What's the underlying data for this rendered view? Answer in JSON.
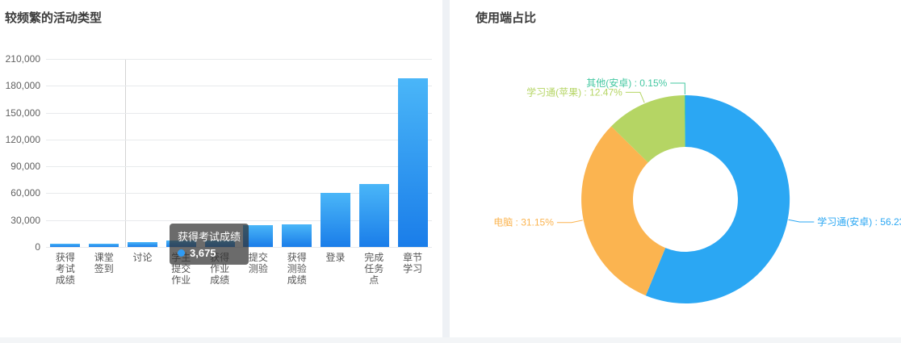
{
  "page": {
    "divider_color": "#eef1f5",
    "bottom_strip_color": "#f3f5f7"
  },
  "tooltip": {
    "title": "获得考试成绩",
    "value": "3,675",
    "marker_color": "#2f9bf4"
  },
  "chart_data": [
    {
      "type": "bar",
      "title": "较频繁的活动类型",
      "categories": [
        "获得考试成绩",
        "课堂签到",
        "讨论",
        "学生提交作业",
        "获得作业成绩",
        "提交测验",
        "获得测验成绩",
        "登录",
        "完成任务点",
        "章节学习"
      ],
      "category_lines": [
        [
          "获得",
          "考试",
          "成绩"
        ],
        [
          "课堂",
          "签到"
        ],
        [
          "讨论"
        ],
        [
          "学生",
          "提交",
          "作业"
        ],
        [
          "获得",
          "作业",
          "成绩"
        ],
        [
          "提交",
          "测验"
        ],
        [
          "获得",
          "测验",
          "成绩"
        ],
        [
          "登录"
        ],
        [
          "完成",
          "任务",
          "点"
        ],
        [
          "章节",
          "学习"
        ]
      ],
      "values": [
        3675,
        3900,
        5200,
        6900,
        7500,
        24500,
        25500,
        60500,
        70500,
        188000
      ],
      "y_ticks": [
        "210,000",
        "180,000",
        "150,000",
        "120,000",
        "90,000",
        "60,000",
        "30,000",
        "0"
      ],
      "ylim": [
        0,
        210000
      ],
      "grid": true,
      "bar_gradient_top": "#4ab6f8",
      "bar_gradient_bottom": "#1a7de9",
      "xlabel": "",
      "ylabel": ""
    },
    {
      "type": "pie",
      "title": "使用端占比",
      "donut": true,
      "legend_position": "none",
      "series": [
        {
          "name": "学习通(安卓)",
          "value": 56.23,
          "color": "#2ba7f3"
        },
        {
          "name": "电脑",
          "value": 31.15,
          "color": "#fbb450"
        },
        {
          "name": "学习通(苹果)",
          "value": 12.47,
          "color": "#b5d564"
        },
        {
          "name": "其他(安卓)",
          "value": 0.15,
          "color": "#45c8a2"
        }
      ],
      "label_format": "name : value%"
    }
  ]
}
